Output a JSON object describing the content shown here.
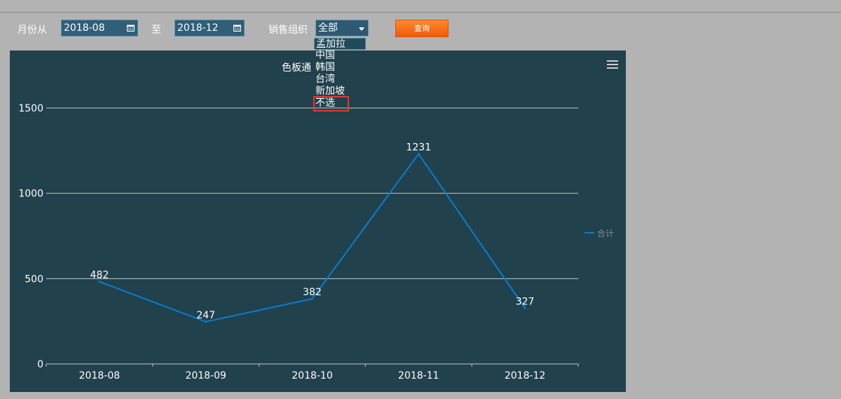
{
  "filters": {
    "month_from_label": "月份从",
    "month_from_value": "2018-08",
    "to_label": "至",
    "month_to_value": "2018-12",
    "sales_org_label": "销售组织",
    "sales_org_value": "全部",
    "query_button": "查询"
  },
  "sales_org_options": [
    "孟加拉",
    "中国",
    "韩国",
    "台湾",
    "新加坡",
    "不选"
  ],
  "chart_title_partial": "色板通",
  "colors": {
    "line": "#0a7cd0",
    "panel": "#21414d",
    "button": "#f06a1a",
    "highlight": "#e53935"
  },
  "icons": {
    "menu": "menu-icon",
    "calendar": "calendar-icon"
  },
  "chart_data": {
    "type": "line",
    "categories": [
      "2018-08",
      "2018-09",
      "2018-10",
      "2018-11",
      "2018-12"
    ],
    "series": [
      {
        "name": "合计",
        "values": [
          482,
          247,
          382,
          1231,
          327
        ]
      }
    ],
    "ylim": [
      0,
      1500
    ],
    "yticks": [
      0,
      500,
      1000,
      1500
    ],
    "grid": true,
    "legend_position": "right"
  }
}
